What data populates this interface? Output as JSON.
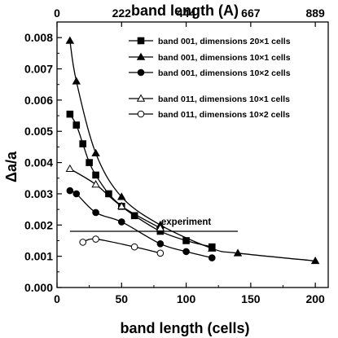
{
  "chart_data": {
    "type": "line",
    "xlabel": "band length (cells)",
    "ylabel": "Δa/a",
    "top_xlabel": "band length (A)",
    "xlim": [
      0,
      210
    ],
    "ylim": [
      0,
      0.0085
    ],
    "x_ticks": [
      0,
      50,
      100,
      150,
      200
    ],
    "y_ticks": [
      0.0,
      0.001,
      0.002,
      0.003,
      0.004,
      0.005,
      0.006,
      0.007,
      0.008
    ],
    "y_tick_labels": [
      "0.000",
      "0.001",
      "0.002",
      "0.003",
      "0.004",
      "0.005",
      "0.006",
      "0.007",
      "0.008"
    ],
    "top_ticks": [
      {
        "x": 0,
        "label": "0"
      },
      {
        "x": 50,
        "label": "222"
      },
      {
        "x": 100,
        "label": "444"
      },
      {
        "x": 150,
        "label": "667"
      },
      {
        "x": 200,
        "label": "889"
      }
    ],
    "grid": false,
    "legend_position": "top-right",
    "series": [
      {
        "name": "band 001, dimensions 20×1 cells",
        "marker": "square-filled",
        "x": [
          10,
          15,
          20,
          25,
          30,
          40,
          50,
          60,
          80,
          100,
          120
        ],
        "y": [
          0.00555,
          0.0052,
          0.0046,
          0.004,
          0.0036,
          0.003,
          0.0026,
          0.0023,
          0.0018,
          0.0015,
          0.0013
        ]
      },
      {
        "name": "band 001, dimensions 10×1 cells",
        "marker": "triangle-filled",
        "x": [
          10,
          15,
          30,
          50,
          80,
          120,
          140,
          200
        ],
        "y": [
          0.0079,
          0.0066,
          0.0043,
          0.0029,
          0.002,
          0.00125,
          0.0011,
          0.00085
        ]
      },
      {
        "name": "band 001, dimensions 10×2 cells",
        "marker": "circle-filled",
        "x": [
          10,
          15,
          30,
          50,
          80,
          100,
          120
        ],
        "y": [
          0.0031,
          0.003,
          0.0024,
          0.0021,
          0.0014,
          0.00115,
          0.00095
        ]
      },
      {
        "name": "band 011, dimensions 10×1 cells",
        "marker": "triangle-open",
        "x": [
          10,
          30,
          50,
          80
        ],
        "y": [
          0.0038,
          0.0033,
          0.0026,
          0.0019
        ]
      },
      {
        "name": "band 011, dimensions 10×2 cells",
        "marker": "circle-open",
        "x": [
          20,
          30,
          60,
          80
        ],
        "y": [
          0.00145,
          0.00155,
          0.0013,
          0.0011
        ]
      }
    ],
    "reference_line": {
      "label": "experiment",
      "y": 0.0018,
      "x_range": [
        10,
        140
      ]
    }
  }
}
